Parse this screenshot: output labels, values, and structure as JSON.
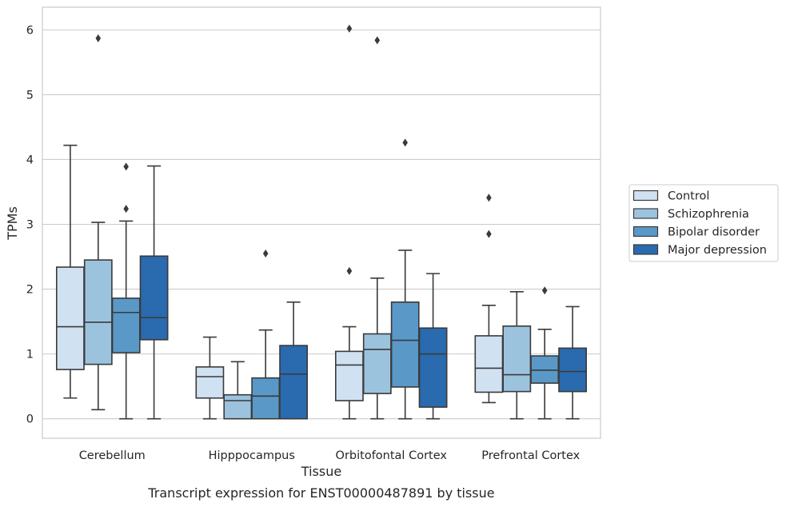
{
  "chart_data": {
    "type": "box",
    "xlabel": "Tissue",
    "ylabel": "TPMs",
    "caption": "Transcript expression for ENST00000487891 by tissue",
    "ylim": [
      -0.3,
      6.35
    ],
    "yticks": [
      0,
      1,
      2,
      3,
      4,
      5,
      6
    ],
    "grid": "horizontal",
    "legend_position": "right",
    "categories": [
      "Cerebellum",
      "Hipppocampus",
      "Orbitofontal Cortex",
      "Prefrontal Cortex"
    ],
    "series": [
      {
        "name": "Control",
        "color": "#d0e1f2",
        "boxes": [
          {
            "whislo": 0.32,
            "q1": 0.76,
            "med": 1.42,
            "q3": 2.34,
            "whishi": 4.22,
            "fliers": []
          },
          {
            "whislo": 0.0,
            "q1": 0.32,
            "med": 0.65,
            "q3": 0.8,
            "whishi": 1.26,
            "fliers": []
          },
          {
            "whislo": 0.0,
            "q1": 0.28,
            "med": 0.83,
            "q3": 1.04,
            "whishi": 1.42,
            "fliers": [
              2.28,
              6.02
            ]
          },
          {
            "whislo": 0.25,
            "q1": 0.41,
            "med": 0.78,
            "q3": 1.28,
            "whishi": 1.75,
            "fliers": [
              2.85,
              3.41
            ]
          }
        ]
      },
      {
        "name": "Schizophrenia",
        "color": "#9cc3de",
        "boxes": [
          {
            "whislo": 0.14,
            "q1": 0.84,
            "med": 1.49,
            "q3": 2.45,
            "whishi": 3.03,
            "fliers": [
              5.87
            ]
          },
          {
            "whislo": 0.0,
            "q1": 0.0,
            "med": 0.28,
            "q3": 0.37,
            "whishi": 0.88,
            "fliers": []
          },
          {
            "whislo": 0.0,
            "q1": 0.39,
            "med": 1.07,
            "q3": 1.31,
            "whishi": 2.17,
            "fliers": [
              5.84
            ]
          },
          {
            "whislo": 0.0,
            "q1": 0.42,
            "med": 0.68,
            "q3": 1.43,
            "whishi": 1.96,
            "fliers": []
          }
        ]
      },
      {
        "name": "Bipolar disorder",
        "color": "#5a98c7",
        "boxes": [
          {
            "whislo": 0.0,
            "q1": 1.02,
            "med": 1.64,
            "q3": 1.86,
            "whishi": 3.05,
            "fliers": [
              3.24,
              3.89
            ]
          },
          {
            "whislo": 0.0,
            "q1": 0.0,
            "med": 0.35,
            "q3": 0.63,
            "whishi": 1.37,
            "fliers": [
              2.55
            ]
          },
          {
            "whislo": 0.0,
            "q1": 0.49,
            "med": 1.21,
            "q3": 1.8,
            "whishi": 2.6,
            "fliers": [
              4.26
            ]
          },
          {
            "whislo": 0.0,
            "q1": 0.55,
            "med": 0.75,
            "q3": 0.97,
            "whishi": 1.38,
            "fliers": [
              1.98
            ]
          }
        ]
      },
      {
        "name": "Major depression",
        "color": "#2a6aae",
        "boxes": [
          {
            "whislo": 0.0,
            "q1": 1.22,
            "med": 1.56,
            "q3": 2.51,
            "whishi": 3.9,
            "fliers": []
          },
          {
            "whislo": 0.0,
            "q1": 0.0,
            "med": 0.69,
            "q3": 1.13,
            "whishi": 1.8,
            "fliers": []
          },
          {
            "whislo": 0.0,
            "q1": 0.18,
            "med": 1.0,
            "q3": 1.4,
            "whishi": 2.24,
            "fliers": []
          },
          {
            "whislo": 0.0,
            "q1": 0.42,
            "med": 0.73,
            "q3": 1.09,
            "whishi": 1.73,
            "fliers": []
          }
        ]
      }
    ]
  }
}
